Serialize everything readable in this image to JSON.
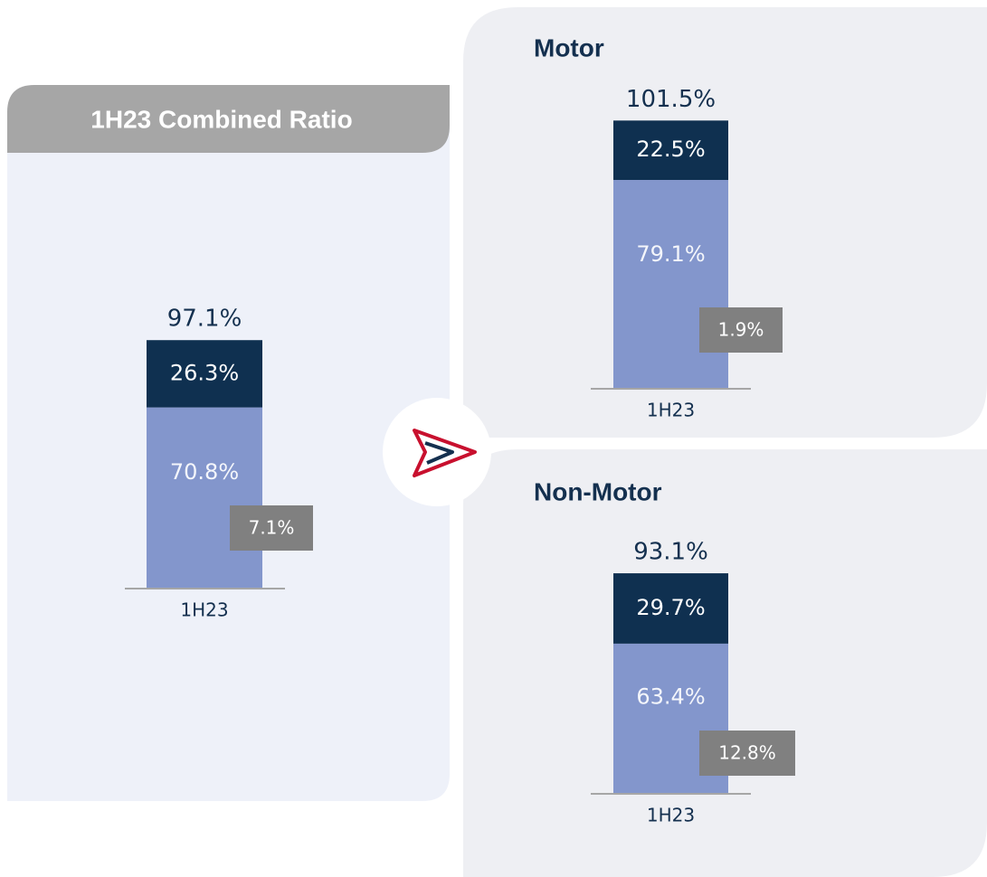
{
  "chart_data": [
    {
      "type": "bar",
      "stacked": true,
      "title": "1H23 Combined Ratio",
      "categories": [
        "1H23"
      ],
      "series": [
        {
          "color": "#8396cc",
          "values": [
            70.8
          ],
          "value_labels": [
            "70.8%"
          ]
        },
        {
          "color": "#0f3050",
          "values": [
            26.3
          ],
          "value_labels": [
            "26.3%"
          ]
        }
      ],
      "totals": [
        97.1
      ],
      "total_labels": [
        "97.1%"
      ],
      "inset": {
        "color": "#808080",
        "values": [
          7.1
        ],
        "value_labels": [
          "7.1%"
        ]
      }
    },
    {
      "type": "bar",
      "stacked": true,
      "title": "Motor",
      "categories": [
        "1H23"
      ],
      "series": [
        {
          "color": "#8396cc",
          "values": [
            79.1
          ],
          "value_labels": [
            "79.1%"
          ]
        },
        {
          "color": "#0f3050",
          "values": [
            22.5
          ],
          "value_labels": [
            "22.5%"
          ]
        }
      ],
      "totals": [
        101.5
      ],
      "total_labels": [
        "101.5%"
      ],
      "inset": {
        "color": "#808080",
        "values": [
          1.9
        ],
        "value_labels": [
          "1.9%"
        ]
      }
    },
    {
      "type": "bar",
      "stacked": true,
      "title": "Non-Motor",
      "categories": [
        "1H23"
      ],
      "series": [
        {
          "color": "#8396cc",
          "values": [
            63.4
          ],
          "value_labels": [
            "63.4%"
          ]
        },
        {
          "color": "#0f3050",
          "values": [
            29.7
          ],
          "value_labels": [
            "29.7%"
          ]
        }
      ],
      "totals": [
        93.1
      ],
      "total_labels": [
        "93.1%"
      ],
      "inset": {
        "color": "#808080",
        "values": [
          12.8
        ],
        "value_labels": [
          "12.8%"
        ]
      }
    }
  ]
}
